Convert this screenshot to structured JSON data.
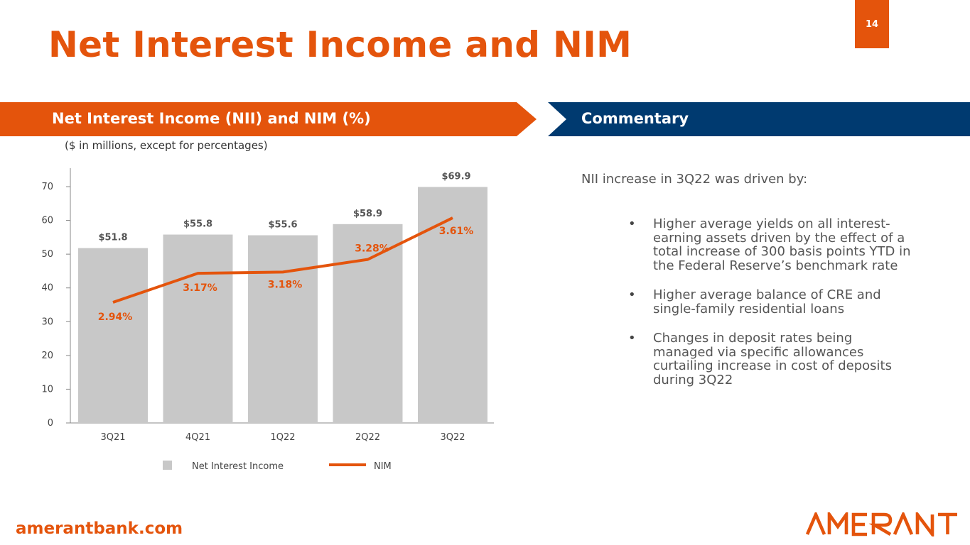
{
  "slide": {
    "title": "Net Interest Income and NIM",
    "page_number": "14",
    "footer_link": "amerantbank.com",
    "logo_text": "AMERANT"
  },
  "left_panel": {
    "header": "Net Interest Income (NII) and NIM (%)",
    "note": "($ in millions, except for percentages)"
  },
  "right_panel": {
    "header": "Commentary",
    "lead": "NII increase in 3Q22 was driven by:",
    "bullets": [
      "Higher average yields on all interest-earning assets driven by the effect of a total increase of 300 basis points YTD in the Federal Reserve’s benchmark rate",
      "Higher average balance of CRE and single-family residential loans",
      "Changes in deposit rates being managed via specific allowances curtailing increase in cost of deposits during 3Q22"
    ]
  },
  "colors": {
    "accent_orange": "#E4540C",
    "navy": "#003A70",
    "bar_gray": "#C8C8C8"
  },
  "chart_data": {
    "type": "bar",
    "categories": [
      "3Q21",
      "4Q21",
      "1Q22",
      "2Q22",
      "3Q22"
    ],
    "ylim": [
      0,
      70
    ],
    "yticks": [
      0,
      10,
      20,
      30,
      40,
      50,
      60,
      70
    ],
    "series": [
      {
        "name": "Net Interest Income",
        "type": "bar",
        "values": [
          51.8,
          55.8,
          55.6,
          58.9,
          69.9
        ],
        "labels": [
          "$51.8",
          "$55.8",
          "$55.6",
          "$58.9",
          "$69.9"
        ],
        "color": "#C8C8C8"
      },
      {
        "name": "NIM",
        "type": "line",
        "values": [
          2.94,
          3.17,
          3.18,
          3.28,
          3.61
        ],
        "labels": [
          "2.94%",
          "3.17%",
          "3.18%",
          "3.28%",
          "3.61%"
        ],
        "color": "#E4540C"
      }
    ],
    "legend_position": "bottom",
    "grid": false
  }
}
